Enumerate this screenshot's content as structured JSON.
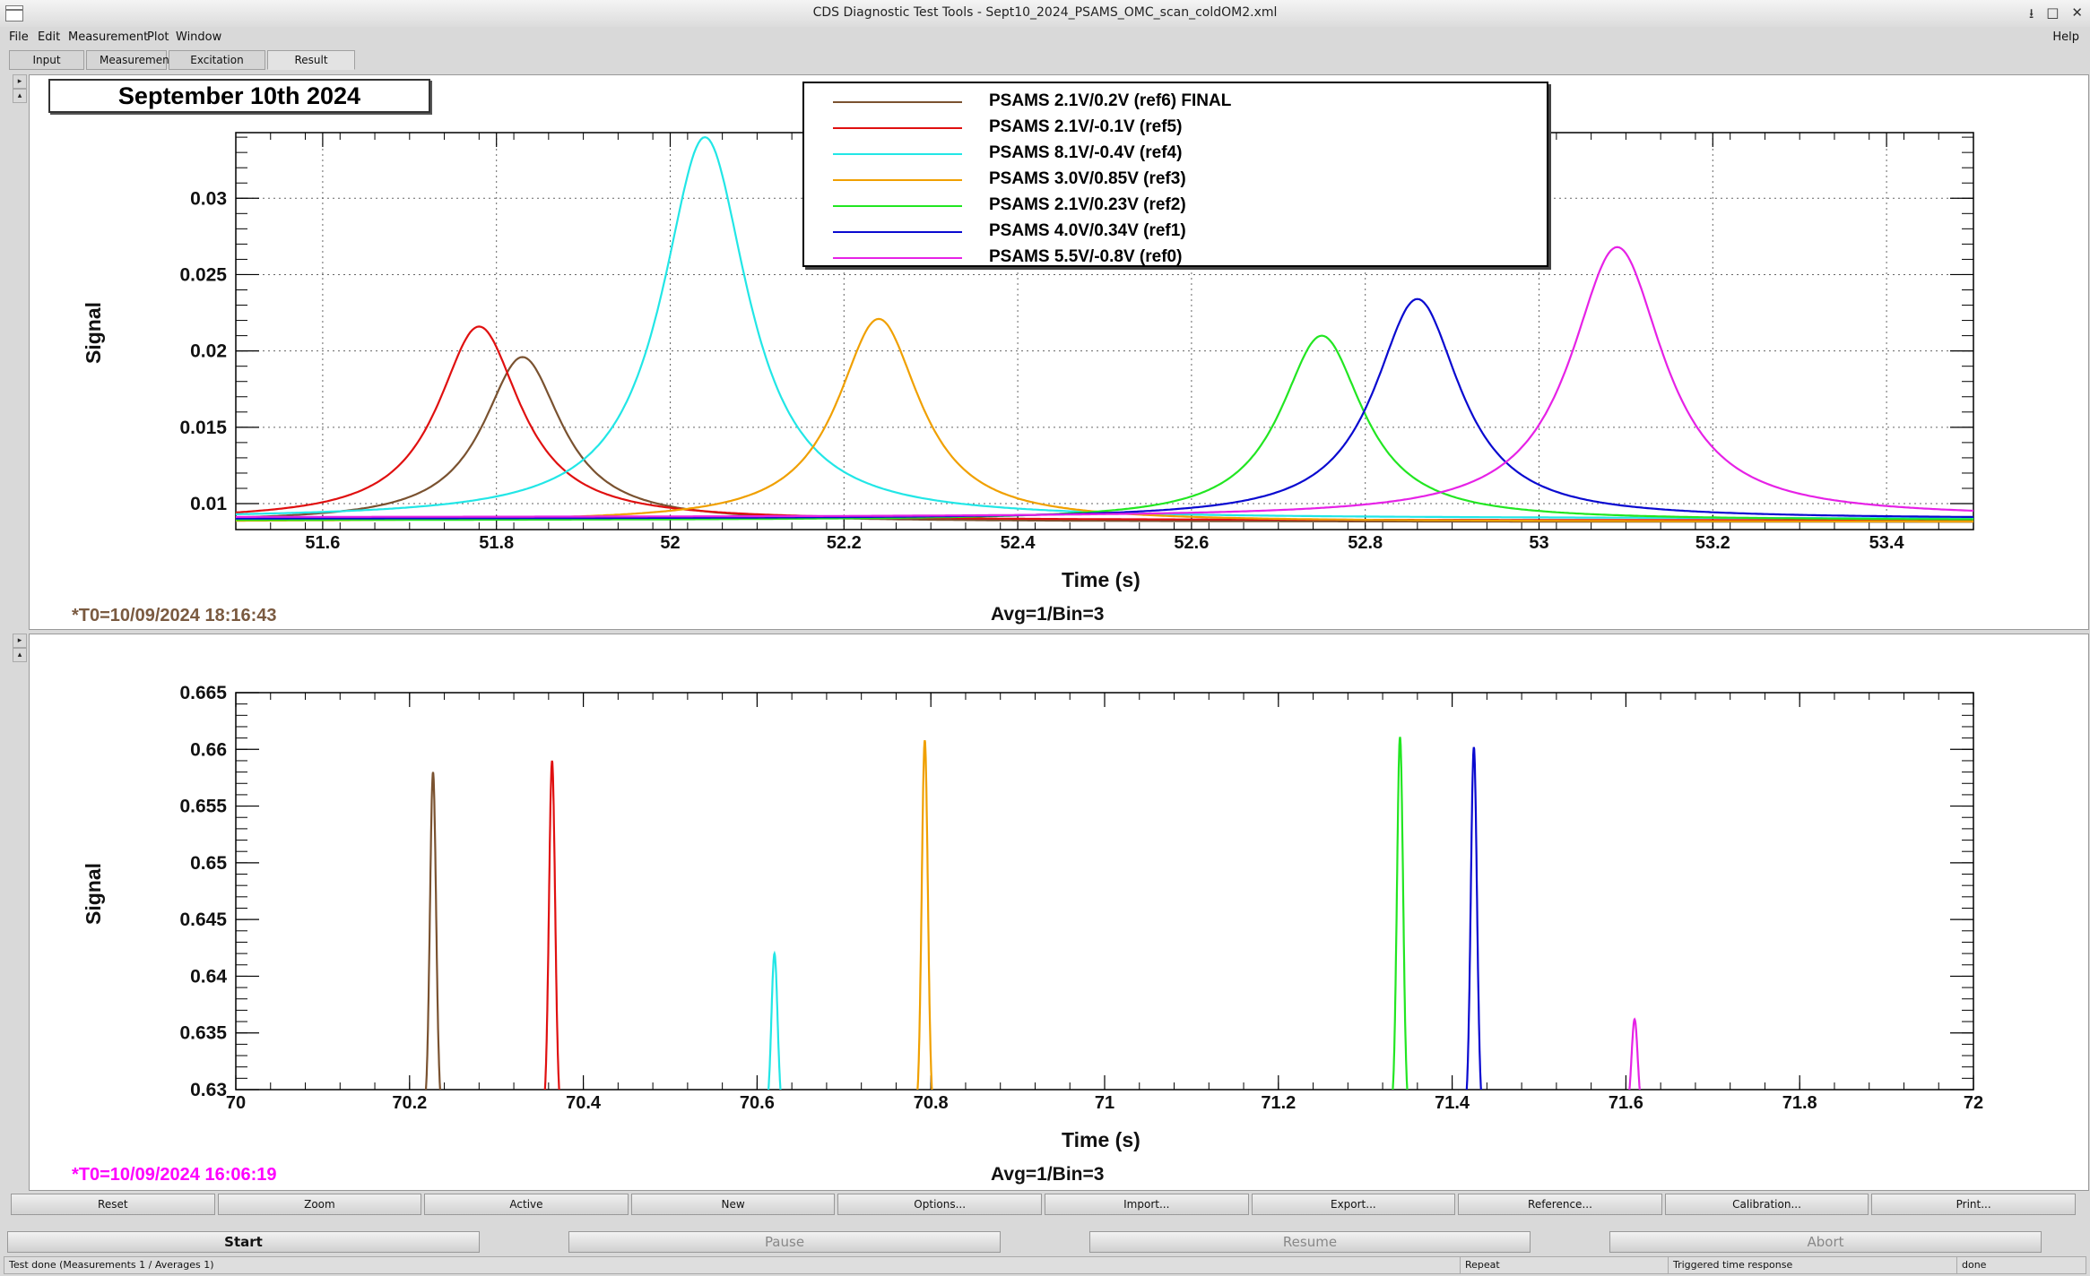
{
  "window": {
    "title": "CDS Diagnostic Test Tools - Sept10_2024_PSAMS_OMC_scan_coldOM2.xml",
    "controls": [
      "⭳",
      "□",
      "✕"
    ]
  },
  "menu": {
    "items": [
      "File",
      "Edit",
      "Measurement",
      "Plot",
      "Window"
    ],
    "help": "Help"
  },
  "tabs": [
    "Input",
    "Measurement",
    "Excitation",
    "Result"
  ],
  "top_plot": {
    "date_label": "September 10th 2024",
    "legend": [
      {
        "label": "PSAMS 2.1V/0.2V (ref6) FINAL",
        "color": "#7a5230"
      },
      {
        "label": "PSAMS 2.1V/-0.1V (ref5)",
        "color": "#e01010"
      },
      {
        "label": "PSAMS 8.1V/-0.4V (ref4)",
        "color": "#22e6e6"
      },
      {
        "label": "PSAMS 3.0V/0.85V (ref3)",
        "color": "#f0a000"
      },
      {
        "label": "PSAMS 2.1V/0.23V (ref2)",
        "color": "#22e622"
      },
      {
        "label": "PSAMS 4.0V/0.34V (ref1)",
        "color": "#0a0ad0"
      },
      {
        "label": " PSAMS 5.5V/-0.8V (ref0)",
        "color": "#e622e6"
      }
    ],
    "xlabel": "Time (s)",
    "ylabel": "Signal",
    "t0": "*T0=10/09/2024 18:16:43",
    "t0_color": "#7a5a40",
    "avg": "Avg=1/Bin=3"
  },
  "bottom_plot": {
    "xlabel": "Time (s)",
    "ylabel": "Signal",
    "t0": "*T0=10/09/2024 16:06:19",
    "t0_color": "#ff00ff",
    "avg": "Avg=1/Bin=3"
  },
  "chart_data": [
    {
      "type": "line",
      "xlabel": "Time (s)",
      "ylabel": "Signal",
      "xlim": [
        51.5,
        53.5
      ],
      "ylim": [
        0.0083,
        0.0343
      ],
      "x_ticks": [
        "51.6",
        "51.8",
        "52",
        "52.2",
        "52.4",
        "52.6",
        "52.8",
        "53",
        "53.2",
        "53.4"
      ],
      "y_ticks": [
        "0.01",
        "0.015",
        "0.02",
        "0.025",
        "0.03"
      ],
      "grid": true,
      "series": [
        {
          "name": "PSAMS 2.1V/0.2V (ref6) FINAL",
          "color": "#7a5230",
          "peak_x": 51.83,
          "peak_y": 0.0196,
          "baseline": 0.0088,
          "width": 0.055
        },
        {
          "name": "PSAMS 2.1V/-0.1V (ref5)",
          "color": "#e01010",
          "peak_x": 51.78,
          "peak_y": 0.0216,
          "baseline": 0.0089,
          "width": 0.058
        },
        {
          "name": "PSAMS 8.1V/-0.4V (ref4)",
          "color": "#22e6e6",
          "peak_x": 52.04,
          "peak_y": 0.034,
          "baseline": 0.009,
          "width": 0.06
        },
        {
          "name": "PSAMS 3.0V/0.85V (ref3)",
          "color": "#f0a000",
          "peak_x": 52.24,
          "peak_y": 0.0221,
          "baseline": 0.0088,
          "width": 0.058
        },
        {
          "name": "PSAMS 2.1V/0.23V (ref2)",
          "color": "#22e622",
          "peak_x": 52.75,
          "peak_y": 0.021,
          "baseline": 0.0089,
          "width": 0.058
        },
        {
          "name": "PSAMS 4.0V/0.34V (ref1)",
          "color": "#0a0ad0",
          "peak_x": 52.86,
          "peak_y": 0.0234,
          "baseline": 0.009,
          "width": 0.06
        },
        {
          "name": " PSAMS 5.5V/-0.8V (ref0)",
          "color": "#e622e6",
          "peak_x": 53.09,
          "peak_y": 0.0268,
          "baseline": 0.0091,
          "width": 0.065
        }
      ]
    },
    {
      "type": "line",
      "xlabel": "Time (s)",
      "ylabel": "Signal",
      "xlim": [
        70,
        72
      ],
      "ylim": [
        0.63,
        0.665
      ],
      "x_ticks": [
        "70",
        "70.2",
        "70.4",
        "70.6",
        "70.8",
        "71",
        "71.2",
        "71.4",
        "71.6",
        "71.8",
        "72"
      ],
      "y_ticks": [
        "0.63",
        "0.635",
        "0.64",
        "0.645",
        "0.65",
        "0.655",
        "0.66",
        "0.665"
      ],
      "grid": false,
      "series": [
        {
          "color": "#7a5230",
          "peak_x": 70.227,
          "peak_y": 0.658
        },
        {
          "color": "#e01010",
          "peak_x": 70.364,
          "peak_y": 0.659
        },
        {
          "color": "#22e6e6",
          "peak_x": 70.62,
          "peak_y": 0.642
        },
        {
          "color": "#f0a000",
          "peak_x": 70.793,
          "peak_y": 0.6608
        },
        {
          "color": "#22e622",
          "peak_x": 71.34,
          "peak_y": 0.6611
        },
        {
          "color": "#0a0ad0",
          "peak_x": 71.425,
          "peak_y": 0.6602
        },
        {
          "color": "#e622e6",
          "peak_x": 71.61,
          "peak_y": 0.6362
        }
      ]
    }
  ],
  "buttons": [
    "Reset",
    "Zoom",
    "Active",
    "New",
    "Options...",
    "Import...",
    "Export...",
    "Reference...",
    "Calibration...",
    "Print..."
  ],
  "controls": {
    "start": "Start",
    "pause": "Pause",
    "resume": "Resume",
    "abort": "Abort"
  },
  "status": {
    "message": "Test done (Measurements 1 / Averages 1)",
    "mode": "Repeat",
    "type": "Triggered time response",
    "state": "done"
  }
}
